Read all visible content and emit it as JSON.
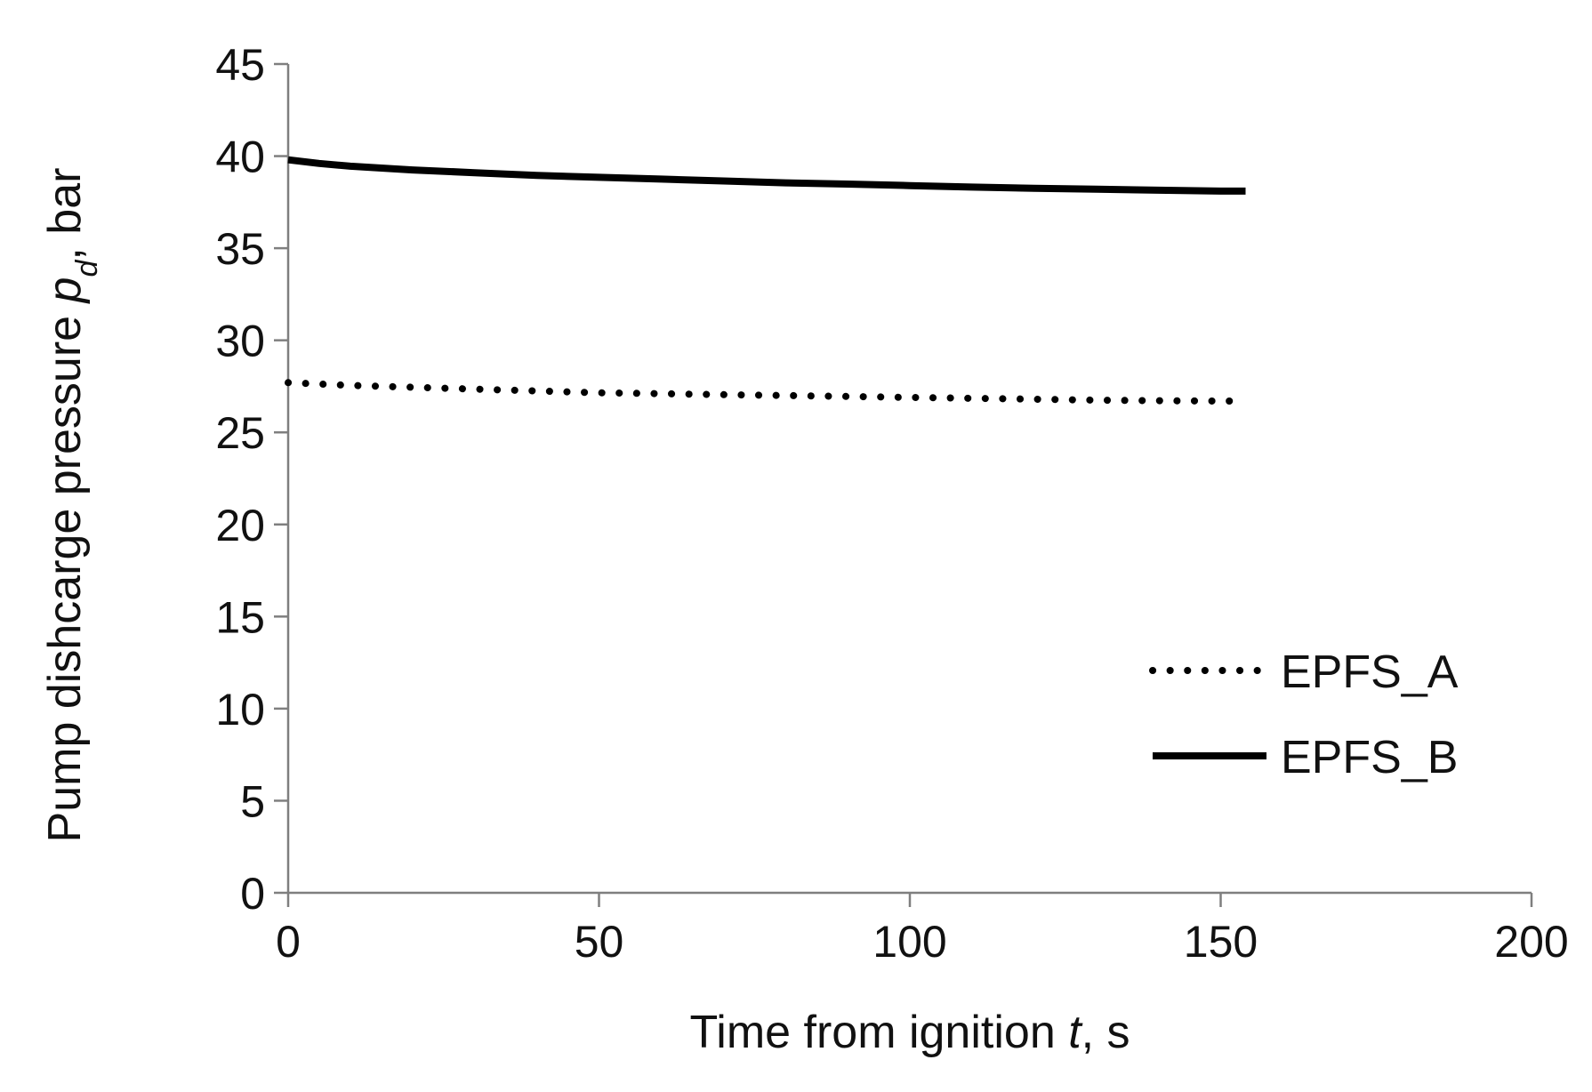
{
  "chart_data": {
    "type": "line",
    "xlabel": {
      "pre": "Time from ignition ",
      "var": "t",
      "post": ", s"
    },
    "ylabel": {
      "pre": "Pump dishcarge pressure ",
      "var": "p",
      "sub": "d",
      "post": ", bar"
    },
    "xlim": [
      0,
      200
    ],
    "ylim": [
      0,
      45
    ],
    "xticks": [
      0,
      50,
      100,
      150,
      200
    ],
    "yticks": [
      0,
      5,
      10,
      15,
      20,
      25,
      30,
      35,
      40,
      45
    ],
    "grid": false,
    "legend_position": "right, lower-middle",
    "series": [
      {
        "name": "EPFS_A",
        "style": "dotted",
        "color": "#000000",
        "x": [
          0,
          10,
          20,
          30,
          40,
          50,
          60,
          70,
          80,
          90,
          100,
          110,
          120,
          130,
          140,
          150,
          152
        ],
        "y": [
          27.7,
          27.55,
          27.45,
          27.35,
          27.25,
          27.15,
          27.1,
          27.05,
          27.0,
          26.95,
          26.9,
          26.85,
          26.8,
          26.75,
          26.72,
          26.7,
          26.7
        ]
      },
      {
        "name": "EPFS_B",
        "style": "solid",
        "color": "#000000",
        "x": [
          0,
          5,
          10,
          20,
          30,
          40,
          50,
          60,
          70,
          80,
          90,
          100,
          110,
          120,
          130,
          140,
          150,
          154
        ],
        "y": [
          39.8,
          39.6,
          39.45,
          39.25,
          39.1,
          38.95,
          38.85,
          38.75,
          38.65,
          38.55,
          38.48,
          38.4,
          38.32,
          38.25,
          38.2,
          38.15,
          38.1,
          38.1
        ]
      }
    ]
  }
}
